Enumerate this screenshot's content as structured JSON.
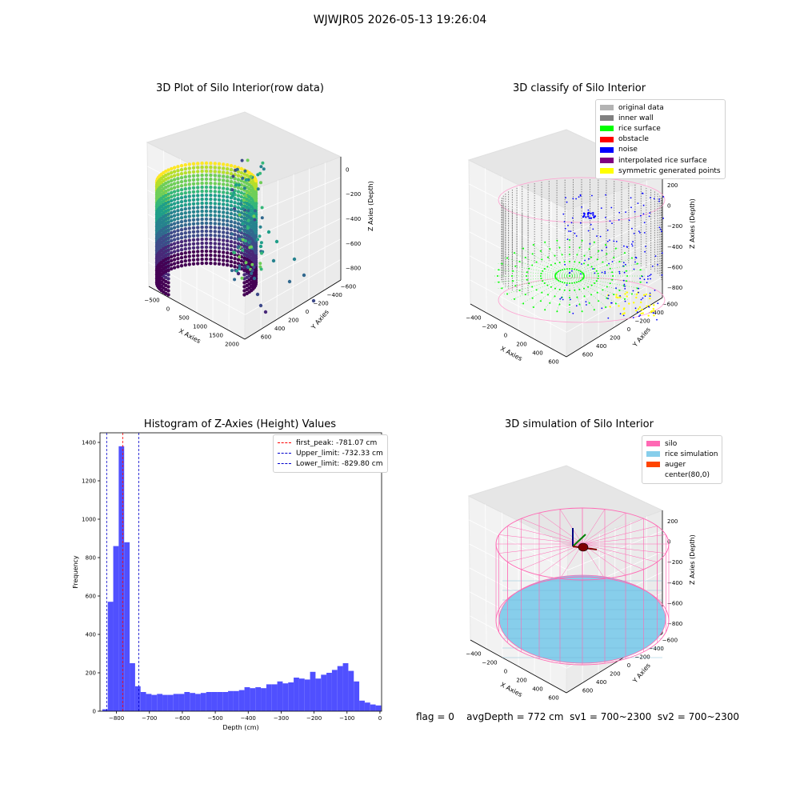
{
  "figure": {
    "suptitle": "WJWJR05 2026-05-13 19:26:04",
    "status": {
      "flag": "flag = 0",
      "avg_depth": "avgDepth = 772 cm",
      "sv1": "sv1 = 700~2300",
      "sv2": "sv2 = 700~2300"
    }
  },
  "colors": {
    "hist_bar": "#5050ff",
    "first_peak": "#ff0000",
    "limits": "#0000cc",
    "silo": "#ff69b4",
    "rice_simulation": "#87ceeb",
    "auger": "#ff4500",
    "inner_wall": "#808080",
    "rice_surface": "#00ff00",
    "obstacle": "#ff0000",
    "noise": "#0000ff",
    "interpolated": "#800080",
    "symmetric": "#ffff00",
    "original_data": "#b3b3b3"
  },
  "chart_data": [
    {
      "type": "scatter",
      "projection": "3d",
      "title": "3D Plot of Silo Interior(row data)",
      "xlabel": "X Axies",
      "ylabel": "Y Axies",
      "zlabel": "Z Axies (Depth)",
      "x_ticks": [
        -500,
        0,
        500,
        1000,
        1500,
        2000
      ],
      "y_ticks": [
        -600,
        -400,
        -200,
        0,
        200,
        400,
        600
      ],
      "z_ticks": [
        -800,
        -600,
        -400,
        -200,
        0
      ],
      "colormap": "viridis",
      "grid": true
    },
    {
      "type": "scatter",
      "projection": "3d",
      "title": "3D classify of Silo Interior",
      "xlabel": "X Axies",
      "ylabel": "Y Axies",
      "zlabel": "Z Axies (Depth)",
      "x_ticks": [
        -400,
        -200,
        0,
        200,
        400,
        600
      ],
      "y_ticks": [
        -600,
        -400,
        -200,
        0,
        200,
        400,
        600
      ],
      "z_ticks": [
        -800,
        -600,
        -400,
        -200,
        0,
        200
      ],
      "legend": [
        "original data",
        "inner wall",
        "rice surface",
        "obstacle",
        "noise",
        "interpolated rice surface",
        "symmetric generated points"
      ],
      "legend_position": "top-right",
      "grid": true
    },
    {
      "type": "bar",
      "title": "Histogram of Z-Axies (Height) Values",
      "xlabel": "Depth (cm)",
      "ylabel": "Frequency",
      "xlim": [
        -850,
        5
      ],
      "ylim": [
        0,
        1450
      ],
      "x_ticks": [
        -800,
        -700,
        -600,
        -500,
        -400,
        -300,
        -200,
        -100,
        0
      ],
      "y_ticks": [
        0,
        200,
        400,
        600,
        800,
        1000,
        1200,
        1400
      ],
      "bin_start": -843,
      "bin_width": 16.6,
      "values": [
        10,
        570,
        860,
        1380,
        880,
        250,
        130,
        100,
        90,
        85,
        90,
        85,
        85,
        90,
        90,
        100,
        95,
        90,
        95,
        100,
        100,
        100,
        100,
        105,
        105,
        110,
        125,
        120,
        125,
        120,
        140,
        140,
        155,
        145,
        150,
        175,
        170,
        165,
        205,
        170,
        190,
        200,
        215,
        235,
        250,
        210,
        155,
        55,
        45,
        35,
        30
      ],
      "lines": [
        {
          "label": "first_peak: -781.07 cm",
          "x": -781.07
        },
        {
          "label": "Upper_limit: -732.33 cm",
          "x": -732.33
        },
        {
          "label": "Lower_limit: -829.80 cm",
          "x": -829.8
        }
      ],
      "legend_position": "top-right",
      "grid": false
    },
    {
      "type": "scatter",
      "projection": "3d",
      "title": "3D simulation of Silo Interior",
      "xlabel": "X Axies",
      "ylabel": "Y Axies",
      "zlabel": "Z Axies (Depth)",
      "x_ticks": [
        -400,
        -200,
        0,
        200,
        400,
        600
      ],
      "y_ticks": [
        -600,
        -400,
        -200,
        0,
        200,
        400,
        600
      ],
      "z_ticks": [
        -800,
        -600,
        -400,
        -200,
        0,
        200
      ],
      "legend": [
        "silo",
        "rice simulation",
        "auger",
        "center(80,0)"
      ],
      "legend_position": "top-right",
      "grid": true
    }
  ]
}
